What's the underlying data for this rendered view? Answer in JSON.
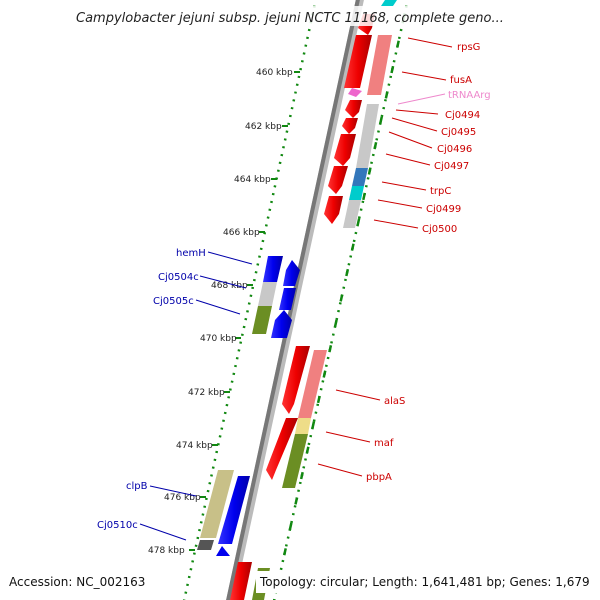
{
  "title": "Campylobacter jejuni subsp. jejuni NCTC 11168, complete geno...",
  "footer": {
    "accession": "Accession: NC_002163",
    "topology": "Topology: circular; Length: 1,641,481 bp; Genes: 1,679"
  },
  "ruler": [
    {
      "label": "460 kbp"
    },
    {
      "label": "462 kbp"
    },
    {
      "label": "464 kbp"
    },
    {
      "label": "466 kbp"
    },
    {
      "label": "468 kbp"
    },
    {
      "label": "470 kbp"
    },
    {
      "label": "472 kbp"
    },
    {
      "label": "474 kbp"
    },
    {
      "label": "476 kbp"
    },
    {
      "label": "478 kbp"
    }
  ],
  "genes_forward": [
    {
      "name": "rpsG"
    },
    {
      "name": "fusA"
    },
    {
      "name": "tRNAArg"
    },
    {
      "name": "Cj0494"
    },
    {
      "name": "Cj0495"
    },
    {
      "name": "Cj0496"
    },
    {
      "name": "Cj0497"
    },
    {
      "name": "trpC"
    },
    {
      "name": "Cj0499"
    },
    {
      "name": "Cj0500"
    },
    {
      "name": "alaS"
    },
    {
      "name": "maf"
    },
    {
      "name": "pbpA"
    }
  ],
  "genes_reverse": [
    {
      "name": "hemH"
    },
    {
      "name": "Cj0504c"
    },
    {
      "name": "Cj0505c"
    },
    {
      "name": "clpB"
    },
    {
      "name": "Cj0510c"
    }
  ],
  "colors": {
    "forward": "#ee0000",
    "reverse": "#0000ee",
    "tick": "#118811",
    "backbone": "#888888"
  }
}
